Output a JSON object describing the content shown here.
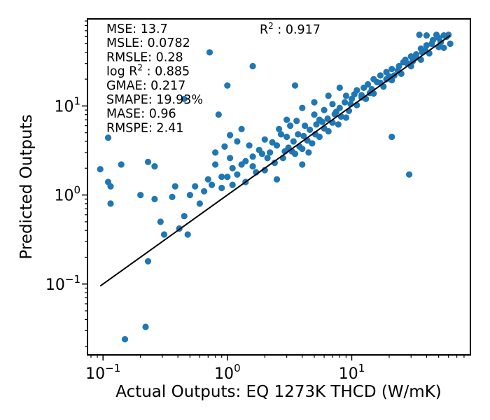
{
  "chart_data": {
    "type": "scatter",
    "xlabel": "Actual Outputs: EQ 1273K THCD (W/mK)",
    "ylabel": "Predicted Outputs",
    "x_scale": "log",
    "y_scale": "log",
    "xlim": [
      0.075,
      90
    ],
    "ylim": [
      0.016,
      95
    ],
    "x_ticks": [
      {
        "value": 0.1,
        "base": "10",
        "exp": "−1"
      },
      {
        "value": 1,
        "base": "10",
        "exp": "0"
      },
      {
        "value": 10,
        "base": "10",
        "exp": "1"
      }
    ],
    "y_ticks": [
      {
        "value": 0.1,
        "base": "10",
        "exp": "−1"
      },
      {
        "value": 1,
        "base": "10",
        "exp": "0"
      },
      {
        "value": 10,
        "base": "10",
        "exp": "1"
      }
    ],
    "grid": false,
    "marker_color": "#1f77b4",
    "fit_line": {
      "x": [
        0.095,
        62
      ],
      "y": [
        0.095,
        62
      ],
      "color": "#000000"
    },
    "metrics_left": [
      {
        "label": "MSE: 13.7"
      },
      {
        "label": "MSLE: 0.0782"
      },
      {
        "label": "RMSLE: 0.28"
      },
      {
        "label": "log R",
        "sup": "2",
        "rest": " : 0.885"
      },
      {
        "label": "GMAE: 0.217"
      },
      {
        "label": "SMAPE: 19.93%"
      },
      {
        "label": "MASE: 0.96"
      },
      {
        "label": "RMSPE: 2.41"
      }
    ],
    "metric_right": {
      "label": "R",
      "sup": "2",
      "rest": " : 0.917"
    },
    "points": [
      [
        0.095,
        1.95
      ],
      [
        0.11,
        1.4
      ],
      [
        0.115,
        1.25
      ],
      [
        0.115,
        0.8
      ],
      [
        0.11,
        4.4
      ],
      [
        0.14,
        2.2
      ],
      [
        0.15,
        0.024
      ],
      [
        0.2,
        1.0
      ],
      [
        0.22,
        0.033
      ],
      [
        0.23,
        0.18
      ],
      [
        0.23,
        2.35
      ],
      [
        0.26,
        2.1
      ],
      [
        0.26,
        0.9
      ],
      [
        0.29,
        0.5
      ],
      [
        0.31,
        0.36
      ],
      [
        0.36,
        0.95
      ],
      [
        0.38,
        1.25
      ],
      [
        0.41,
        0.42
      ],
      [
        0.45,
        0.58
      ],
      [
        0.48,
        0.36
      ],
      [
        0.45,
        12.0
      ],
      [
        0.72,
        40.0
      ],
      [
        1.0,
        17.0
      ],
      [
        1.6,
        28.0
      ],
      [
        3.5,
        17.0
      ],
      [
        0.8,
        3.0
      ],
      [
        0.85,
        8.0
      ],
      [
        0.95,
        3.5
      ],
      [
        1.05,
        4.7
      ],
      [
        1.05,
        2.6
      ],
      [
        1.3,
        5.5
      ],
      [
        1.2,
        4.0
      ],
      [
        21.0,
        4.5
      ],
      [
        29.0,
        1.7
      ],
      [
        4.0,
        2.2
      ],
      [
        4.5,
        3.0
      ],
      [
        2.5,
        1.5
      ],
      [
        0.6,
        0.8
      ],
      [
        0.7,
        1.5
      ],
      [
        0.65,
        1.1
      ],
      [
        0.55,
        1.25
      ],
      [
        0.5,
        1.0
      ],
      [
        0.75,
        1.3
      ],
      [
        0.8,
        2.2
      ],
      [
        0.9,
        1.6
      ],
      [
        1.1,
        2.0
      ],
      [
        1.2,
        1.7
      ],
      [
        1.4,
        2.4
      ],
      [
        1.6,
        2.7
      ],
      [
        1.8,
        3.2
      ],
      [
        1.5,
        3.6
      ],
      [
        2.0,
        4.2
      ],
      [
        2.2,
        3.0
      ],
      [
        2.5,
        3.6
      ],
      [
        3.0,
        4.5
      ],
      [
        3.2,
        6.0
      ],
      [
        3.6,
        6.8
      ],
      [
        4.2,
        6.0
      ],
      [
        5.0,
        8.0
      ],
      [
        5.5,
        7.0
      ],
      [
        6.0,
        9.0
      ],
      [
        7.0,
        10.5
      ],
      [
        8.0,
        9.5
      ],
      [
        9.0,
        13.0
      ],
      [
        10.0,
        12.0
      ],
      [
        11.0,
        15.0
      ],
      [
        12.5,
        16.0
      ],
      [
        14.0,
        14.0
      ],
      [
        15.0,
        20.0
      ],
      [
        17.0,
        22.0
      ],
      [
        19.0,
        20.0
      ],
      [
        21.0,
        26.0
      ],
      [
        24.0,
        28.0
      ],
      [
        27.0,
        33.0
      ],
      [
        30.0,
        36.0
      ],
      [
        33.0,
        38.0
      ],
      [
        36.0,
        44.0
      ],
      [
        40.0,
        48.0
      ],
      [
        45.0,
        55.0
      ],
      [
        50.0,
        58.0
      ],
      [
        55.0,
        62.0
      ],
      [
        60.0,
        63.0
      ],
      [
        35.0,
        63.0
      ],
      [
        40.0,
        62.0
      ],
      [
        48.0,
        63.0
      ],
      [
        2.0,
        1.9
      ],
      [
        2.4,
        2.3
      ],
      [
        2.8,
        2.6
      ],
      [
        3.3,
        3.1
      ],
      [
        3.8,
        3.5
      ],
      [
        4.4,
        4.1
      ],
      [
        5.1,
        4.8
      ],
      [
        6.0,
        5.6
      ],
      [
        7.0,
        6.5
      ],
      [
        8.2,
        7.6
      ],
      [
        9.5,
        8.8
      ],
      [
        11.0,
        10.2
      ],
      [
        13.0,
        12.0
      ],
      [
        15.0,
        13.8
      ],
      [
        18.0,
        16.5
      ],
      [
        21.0,
        19.5
      ],
      [
        25.0,
        23.0
      ],
      [
        30.0,
        28.0
      ],
      [
        36.0,
        33.0
      ],
      [
        42.0,
        39.0
      ],
      [
        50.0,
        46.0
      ],
      [
        1.3,
        2.2
      ],
      [
        1.6,
        2.1
      ],
      [
        1.9,
        2.9
      ],
      [
        2.3,
        3.9
      ],
      [
        2.7,
        4.8
      ],
      [
        3.1,
        3.4
      ],
      [
        3.7,
        4.8
      ],
      [
        4.6,
        5.4
      ],
      [
        5.2,
        6.2
      ],
      [
        6.4,
        7.2
      ],
      [
        7.5,
        8.6
      ],
      [
        8.8,
        11.0
      ],
      [
        10.5,
        13.5
      ],
      [
        12.0,
        12.5
      ],
      [
        13.5,
        17.5
      ],
      [
        16.0,
        18.5
      ],
      [
        19.0,
        24.0
      ],
      [
        22.0,
        22.0
      ],
      [
        26.0,
        31.0
      ],
      [
        31.0,
        32.0
      ],
      [
        37.0,
        40.0
      ],
      [
        3.5,
        2.9
      ],
      [
        4.0,
        3.3
      ],
      [
        4.8,
        3.8
      ],
      [
        5.5,
        4.5
      ],
      [
        6.5,
        5.2
      ],
      [
        7.8,
        6.2
      ],
      [
        9.0,
        7.4
      ],
      [
        2.6,
        5.5
      ],
      [
        3.0,
        7.0
      ],
      [
        4.0,
        9.5
      ],
      [
        5.0,
        11.0
      ],
      [
        6.5,
        13.0
      ],
      [
        8.0,
        16.0
      ],
      [
        1.1,
        1.3
      ],
      [
        1.4,
        1.4
      ],
      [
        1.7,
        1.8
      ],
      [
        1.0,
        1.6
      ],
      [
        0.9,
        1.2
      ],
      [
        2.1,
        2.6
      ],
      [
        2.9,
        3.1
      ],
      [
        3.4,
        4.0
      ],
      [
        4.1,
        4.6
      ],
      [
        5.8,
        6.6
      ],
      [
        7.3,
        8.1
      ],
      [
        9.8,
        10.5
      ],
      [
        12.0,
        13.2
      ],
      [
        14.5,
        15.4
      ],
      [
        17.0,
        18.2
      ],
      [
        20.0,
        21.5
      ],
      [
        23.5,
        25.0
      ],
      [
        28.0,
        30.0
      ],
      [
        33.0,
        35.0
      ],
      [
        39.0,
        42.0
      ],
      [
        44.0,
        50.0
      ],
      [
        52.0,
        52.0
      ],
      [
        58.0,
        60.0
      ],
      [
        62.0,
        50.0
      ],
      [
        55.0,
        45.0
      ]
    ]
  }
}
